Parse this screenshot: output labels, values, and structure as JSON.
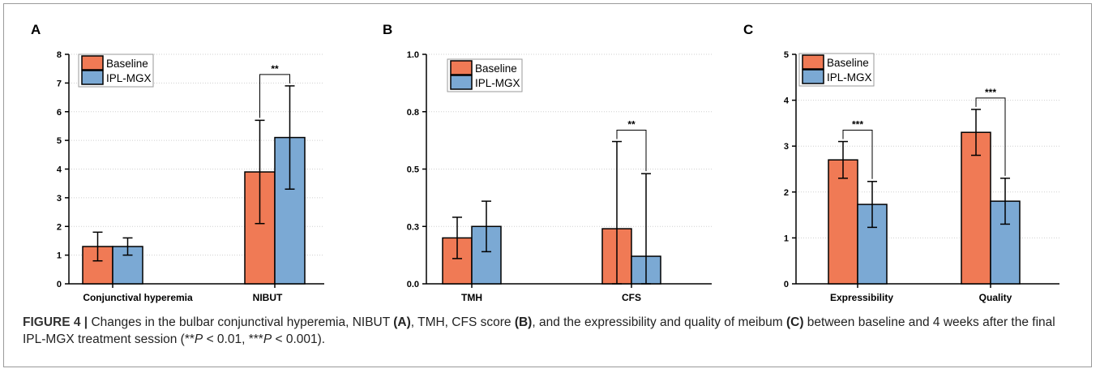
{
  "chart_data": [
    {
      "type": "bar",
      "panel": "A",
      "categories": [
        "Conjunctival hyperemia",
        "NIBUT"
      ],
      "series": [
        {
          "name": "Baseline",
          "values": [
            1.3,
            3.9
          ],
          "errors": [
            0.5,
            1.8
          ]
        },
        {
          "name": "IPL-MGX",
          "values": [
            1.3,
            5.1
          ],
          "errors": [
            0.3,
            1.8
          ]
        }
      ],
      "ylim": [
        0,
        8
      ],
      "yticks": [
        "0",
        "1",
        "2",
        "3",
        "4",
        "5",
        "6",
        "7",
        "8"
      ],
      "significance": [
        {
          "category": "NIBUT",
          "label": "**"
        }
      ],
      "legend": "top-left",
      "grid": true
    },
    {
      "type": "bar",
      "panel": "B",
      "categories": [
        "TMH",
        "CFS"
      ],
      "series": [
        {
          "name": "Baseline",
          "values": [
            0.2,
            0.24
          ],
          "errors": [
            0.09,
            0.38
          ]
        },
        {
          "name": "IPL-MGX",
          "values": [
            0.25,
            0.12
          ],
          "errors": [
            0.11,
            0.36
          ]
        }
      ],
      "ylim": [
        0,
        1.0
      ],
      "yticks": [
        "0.0",
        "0.3",
        "0.5",
        "0.8",
        "1.0"
      ],
      "significance": [
        {
          "category": "CFS",
          "label": "**"
        }
      ],
      "legend": "top-left",
      "grid": true
    },
    {
      "type": "bar",
      "panel": "C",
      "categories": [
        "Expressibility",
        "Quality"
      ],
      "series": [
        {
          "name": "Baseline",
          "values": [
            2.7,
            3.3
          ],
          "errors": [
            0.4,
            0.5
          ]
        },
        {
          "name": "IPL-MGX",
          "values": [
            1.73,
            1.8
          ],
          "errors": [
            0.5,
            0.5
          ]
        }
      ],
      "ylim": [
        0,
        5
      ],
      "yticks": [
        "0",
        "1",
        "2",
        "3",
        "4",
        "5"
      ],
      "significance": [
        {
          "category": "Expressibility",
          "label": "***"
        },
        {
          "category": "Quality",
          "label": "***"
        }
      ],
      "legend": "top-left",
      "grid": true
    }
  ],
  "colors": {
    "baseline": "#f07a55",
    "ipl_mgx": "#7ba9d4",
    "grid": "#cfcfcf"
  },
  "caption": {
    "label": "FIGURE 4 |",
    "text_1": " Changes in the bulbar conjunctival hyperemia, NIBUT ",
    "ref_a": "(A)",
    "text_2": ", TMH, CFS score ",
    "ref_b": "(B)",
    "text_3": ", and the expressibility and quality of meibum ",
    "ref_c": "(C)",
    "text_4": " between baseline and 4 weeks after the final IPL-MGX treatment session (**",
    "p1": "P",
    "text_5": " < 0.01, ***",
    "p2": "P",
    "text_6": " < 0.001)."
  }
}
